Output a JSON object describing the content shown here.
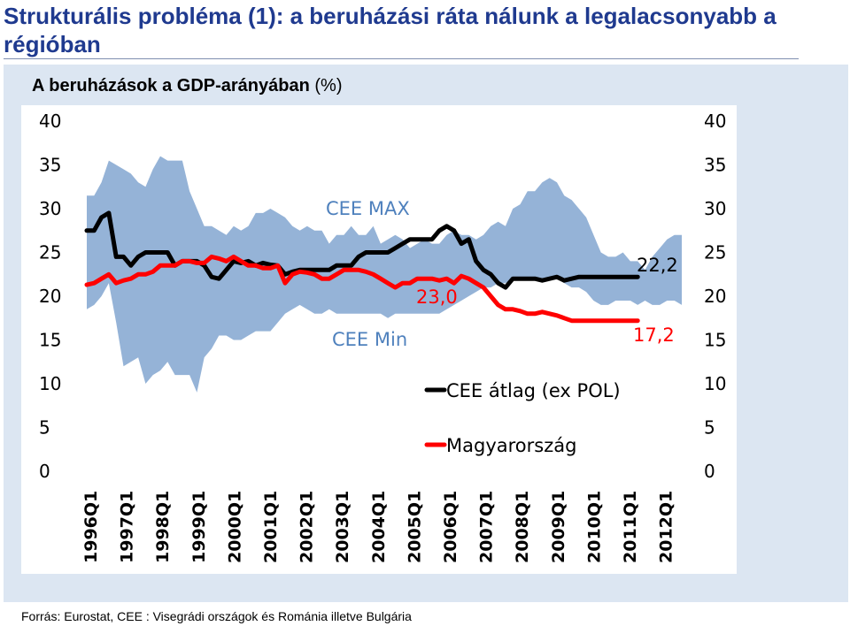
{
  "slide": {
    "title": "Strukturális probléma (1): a beruházási ráta nálunk a legalacsonyabb a régióban",
    "subtitle_bold": "A beruházások a GDP-arányában",
    "subtitle_unit": " (%)",
    "footer": "Forrás: Eurostat, CEE : Visegrádi országok és Románia illetve Bulgária"
  },
  "colors": {
    "band": "#95b3d7",
    "cee_avg": "#000000",
    "hungary": "#ff0000",
    "band_label": "#4f81bd",
    "title": "#1f3a8f",
    "panel": "#dce6f2"
  },
  "chart_data": {
    "type": "area",
    "ylim": [
      0,
      40
    ],
    "yticks": [
      "0",
      "5",
      "10",
      "15",
      "20",
      "25",
      "30",
      "35",
      "40"
    ],
    "year_ticks": [
      "1996Q1",
      "1997Q1",
      "1998Q1",
      "1999Q1",
      "2000Q1",
      "2001Q1",
      "2002Q1",
      "2003Q1",
      "2004Q1",
      "2005Q1",
      "2006Q1",
      "2007Q1",
      "2008Q1",
      "2009Q1",
      "2010Q1",
      "2011Q1",
      "2012Q1"
    ],
    "x_start": "1996Q1",
    "x_end": "2012Q4",
    "grid": false,
    "annotations": {
      "band_max": "CEE MAX",
      "band_min": "CEE Min",
      "cee_last": "22,2",
      "hu_mid": "23,0",
      "hu_last": "17,2"
    },
    "legend": [
      {
        "name": "CEE átlag (ex POL)",
        "color": "#000000"
      },
      {
        "name": "Magyarország",
        "color": "#ff0000"
      }
    ],
    "series": [
      {
        "name": "CEE MAX",
        "values": [
          31.5,
          31.5,
          33,
          35.5,
          35,
          34.5,
          34,
          33,
          32.5,
          34.5,
          36,
          35.5,
          35.5,
          35.5,
          32,
          30,
          28,
          28,
          27.5,
          27,
          28,
          27.5,
          28,
          29.5,
          29.5,
          30,
          29.5,
          29,
          28,
          27.5,
          28,
          27.5,
          27.5,
          26,
          27,
          27,
          28,
          27,
          27,
          28,
          26,
          26.5,
          27,
          26.5,
          25.5,
          26,
          26.5,
          26,
          26,
          27,
          27.5,
          27,
          27,
          26.5,
          27,
          28,
          28.5,
          28,
          30,
          30.5,
          32,
          32,
          33,
          33.5,
          33,
          31.5,
          31,
          30,
          29,
          27,
          25,
          24.5,
          24.5,
          25,
          24,
          24,
          23,
          24.5,
          25.5,
          26.5,
          27,
          27
        ]
      },
      {
        "name": "CEE Min",
        "values": [
          18.5,
          19,
          20,
          21.5,
          17,
          12,
          12.5,
          13,
          10,
          11,
          11.5,
          12.5,
          11,
          11,
          11,
          9,
          13,
          14,
          15.5,
          15.5,
          15,
          15,
          15.5,
          16,
          16,
          16,
          17,
          18,
          18.5,
          19,
          18.5,
          18,
          18,
          18.5,
          18,
          18,
          18,
          18,
          18,
          18,
          18,
          17.5,
          18,
          18,
          18,
          18,
          18,
          18,
          18,
          18.5,
          19,
          19.5,
          20,
          20.5,
          21,
          21,
          21.5,
          21.5,
          22,
          22,
          22,
          22,
          22,
          22,
          22,
          21.5,
          21,
          21,
          20.5,
          19.5,
          19,
          19,
          19.5,
          19.5,
          19.5,
          19,
          19.5,
          19,
          19,
          19.5,
          19.5,
          19
        ]
      },
      {
        "name": "CEE átlag (ex POL)",
        "values": [
          27.5,
          27.5,
          29,
          29.5,
          24.5,
          24.5,
          23.5,
          24.5,
          25,
          25,
          25,
          25,
          23.5,
          24,
          24,
          24,
          23.5,
          22.2,
          22,
          23,
          24,
          23.8,
          24,
          23.5,
          23.8,
          23.6,
          23.5,
          22.5,
          22.8,
          23,
          23,
          23,
          23,
          23,
          23.5,
          23.5,
          23.5,
          24.5,
          25,
          25,
          25,
          25,
          25.5,
          26,
          26.5,
          26.5,
          26.5,
          26.5,
          27.5,
          28,
          27.5,
          26,
          26.5,
          24,
          23,
          22.5,
          21.5,
          21,
          22,
          22,
          22,
          22,
          21.8,
          22,
          22.2,
          21.8,
          22,
          22.2,
          22.2,
          22.2,
          22.2,
          22.2,
          22.2,
          22.2,
          22.2,
          22.2,
          22.2,
          22.2,
          22.2,
          22.2,
          22.2,
          22.2
        ]
      },
      {
        "name": "Magyarország",
        "values": [
          21.3,
          21.5,
          22,
          22.5,
          21.5,
          21.8,
          22,
          22.5,
          22.5,
          22.8,
          23.5,
          23.5,
          23.5,
          24,
          24,
          23.8,
          23.8,
          24.5,
          24.3,
          24,
          24.5,
          24,
          23.5,
          23.5,
          23.2,
          23.2,
          23.5,
          21.5,
          22.5,
          22.8,
          22.7,
          22.5,
          22,
          22,
          22.5,
          23,
          23,
          23,
          22.8,
          22.5,
          22,
          21.5,
          21,
          21.5,
          21.5,
          22,
          22,
          22,
          21.8,
          22,
          21.5,
          22.3,
          22,
          21.5,
          21,
          20,
          19,
          18.5,
          18.5,
          18.3,
          18,
          18,
          18.2,
          18,
          17.8,
          17.5,
          17.2,
          17.2,
          17.2,
          17.2,
          17.2,
          17.2,
          17.2,
          17.2,
          17.2,
          17.2,
          17.2,
          17.2,
          17.2,
          17.2,
          17.2,
          17.2
        ]
      }
    ]
  }
}
